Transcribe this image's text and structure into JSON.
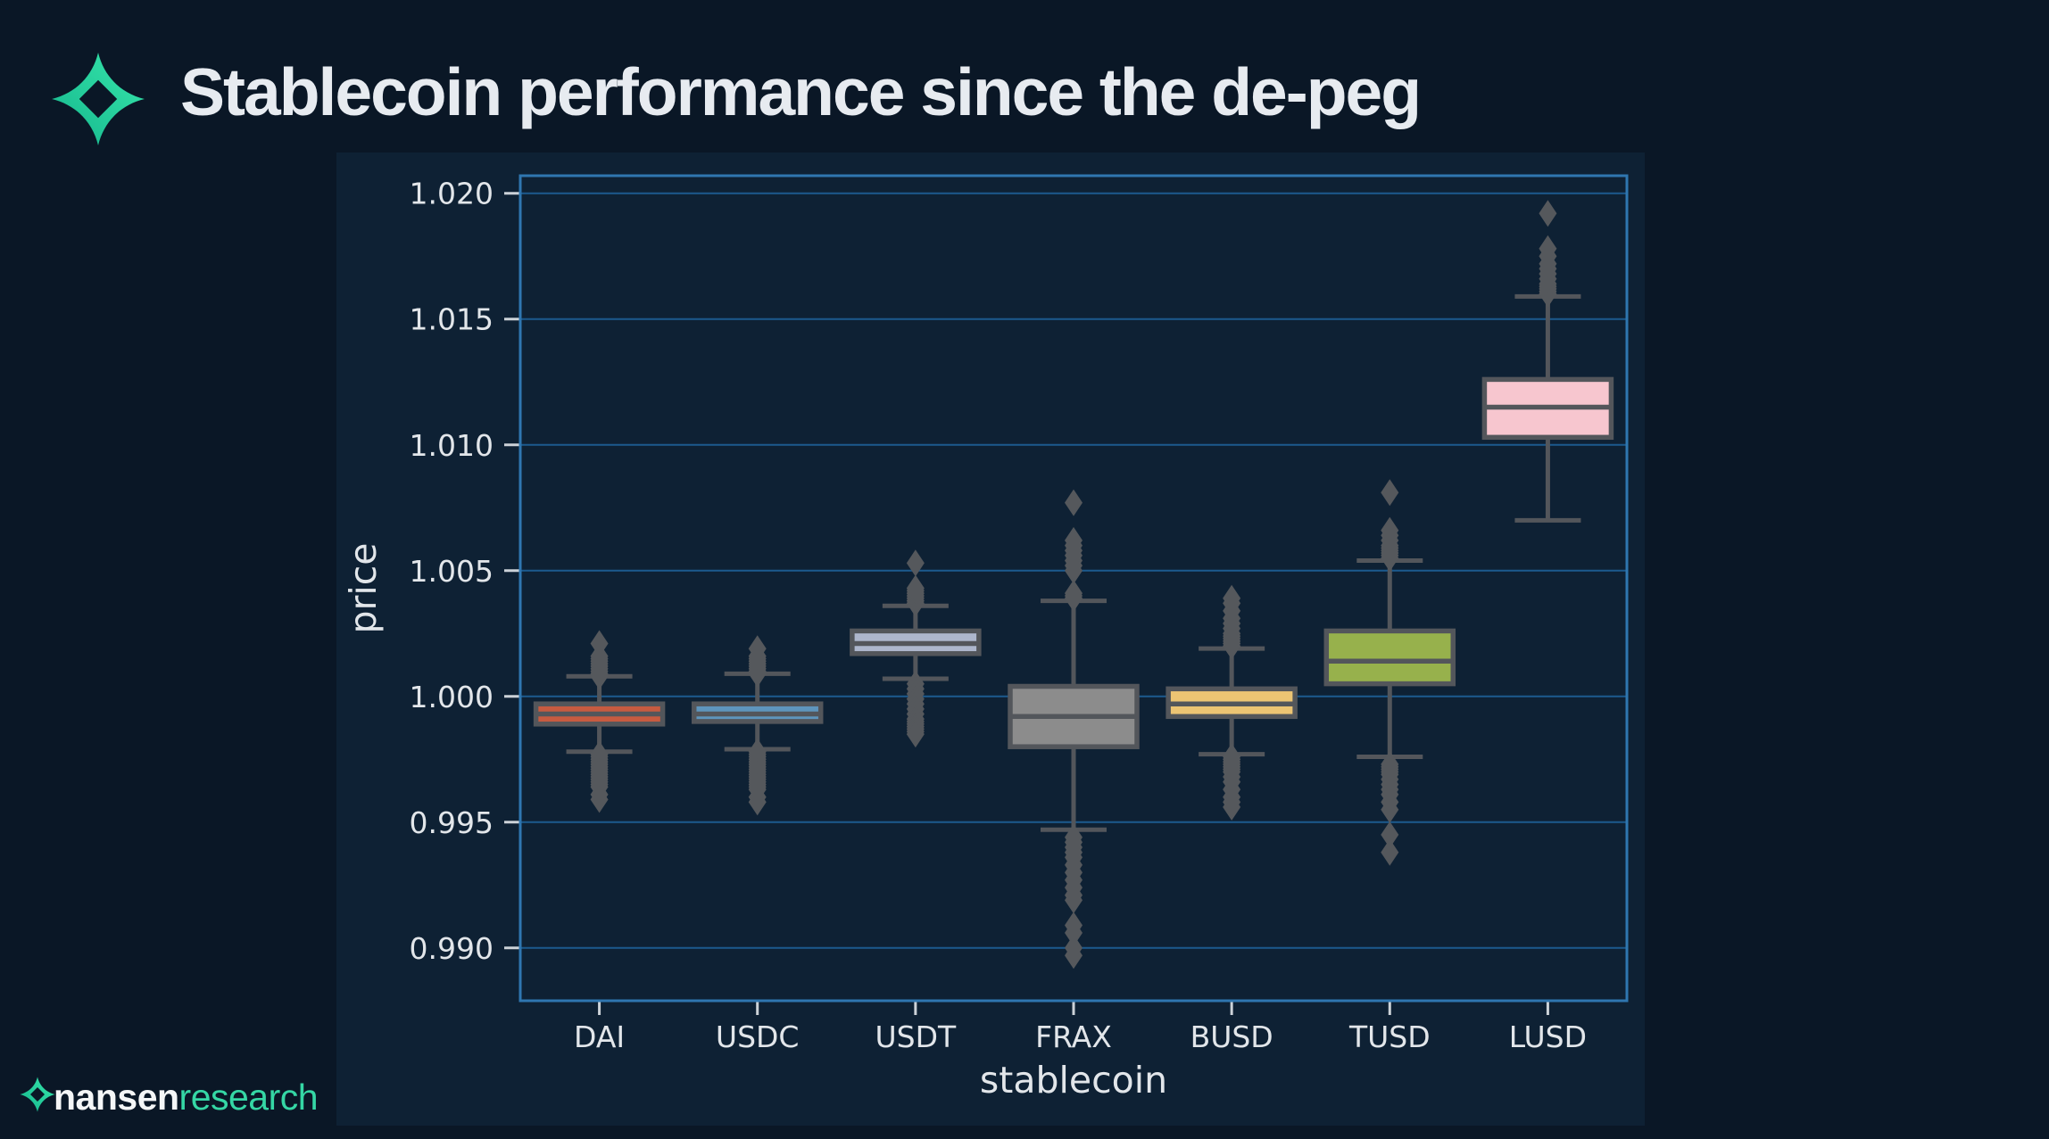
{
  "header": {
    "title": "Stablecoin performance since the de-peg",
    "logo_icon": "nansen-diamond-icon"
  },
  "footer": {
    "brand_bold": "nansen",
    "brand_light": "research",
    "logo_icon": "nansen-diamond-icon"
  },
  "colors": {
    "page_bg": "#0a1726",
    "figure_bg": "#0e2134",
    "spine": "#2f76b0",
    "grid": "#1c5a8e",
    "tick": "#ccd2d8",
    "text": "#e2e6ea",
    "box_line": "#53565b",
    "outlier": "#55585c",
    "title_text": "#e7ebf0",
    "brand_white": "#f4f6f7",
    "brand_teal": "#35d7a5",
    "logo_grad_start": "#38e8ac",
    "logo_grad_end": "#14b58c"
  },
  "chart_data": {
    "type": "boxplot",
    "title": "",
    "xlabel": "stablecoin",
    "ylabel": "price",
    "ylim": [
      0.9879,
      1.0207
    ],
    "grid": "horizontal",
    "legend": false,
    "yticks": [
      {
        "value": 1.02,
        "label": "1.020"
      },
      {
        "value": 1.015,
        "label": "1.015"
      },
      {
        "value": 1.01,
        "label": "1.010"
      },
      {
        "value": 1.005,
        "label": "1.005"
      },
      {
        "value": 1.0,
        "label": "1.000"
      },
      {
        "value": 0.995,
        "label": "0.995"
      },
      {
        "value": 0.99,
        "label": "0.990"
      }
    ],
    "categories": [
      "DAI",
      "USDC",
      "USDT",
      "FRAX",
      "BUSD",
      "TUSD",
      "LUSD"
    ],
    "series": [
      {
        "name": "DAI",
        "color": "#c75b40",
        "whisker_low": 0.9978,
        "q1": 0.9989,
        "median": 0.9993,
        "q3": 0.9997,
        "whisker_high": 1.0008,
        "outliers_high": [
          1.0008,
          1.0009,
          1.001,
          1.0011,
          1.0012,
          1.0013,
          1.0014,
          1.0015,
          1.0016,
          1.0021
        ],
        "outliers_low": [
          0.9977,
          0.9976,
          0.9975,
          0.9974,
          0.9973,
          0.9972,
          0.9971,
          0.997,
          0.9969,
          0.9968,
          0.9967,
          0.9966,
          0.9965,
          0.9964,
          0.9961,
          0.9959
        ]
      },
      {
        "name": "USDC",
        "color": "#5e95bd",
        "whisker_low": 0.9979,
        "q1": 0.999,
        "median": 0.9993,
        "q3": 0.9997,
        "whisker_high": 1.0009,
        "outliers_high": [
          1.0009,
          1.001,
          1.0011,
          1.0012,
          1.0013,
          1.0014,
          1.0015,
          1.0016,
          1.0019
        ],
        "outliers_low": [
          0.9978,
          0.9977,
          0.9976,
          0.9975,
          0.9974,
          0.9973,
          0.9972,
          0.9971,
          0.997,
          0.9969,
          0.9968,
          0.9967,
          0.9966,
          0.9965,
          0.9964,
          0.9963,
          0.996,
          0.9958
        ]
      },
      {
        "name": "USDT",
        "color": "#adb6cc",
        "whisker_low": 1.0007,
        "q1": 1.0017,
        "median": 1.0021,
        "q3": 1.0026,
        "whisker_high": 1.0036,
        "outliers_high": [
          1.0037,
          1.0038,
          1.0039,
          1.004,
          1.0041,
          1.0042,
          1.0043,
          1.0053
        ],
        "outliers_low": [
          1.0005,
          1.0003,
          1.0001,
          0.9999,
          0.9997,
          0.9995,
          0.9993,
          0.9991,
          0.999,
          0.9989,
          0.9988,
          0.9987,
          0.9986,
          0.9985
        ]
      },
      {
        "name": "FRAX",
        "color": "#8c8c8c",
        "whisker_low": 0.9947,
        "q1": 0.998,
        "median": 0.9992,
        "q3": 1.0004,
        "whisker_high": 1.0038,
        "outliers_high": [
          1.0039,
          1.004,
          1.0041,
          1.005,
          1.0052,
          1.0054,
          1.0056,
          1.0058,
          1.006,
          1.0062,
          1.0077
        ],
        "outliers_low": [
          0.9944,
          0.9942,
          0.994,
          0.9938,
          0.9936,
          0.9933,
          0.993,
          0.9927,
          0.9924,
          0.9921,
          0.9919,
          0.9909,
          0.9906,
          0.99,
          0.9897
        ]
      },
      {
        "name": "BUSD",
        "color": "#ecc473",
        "whisker_low": 0.9977,
        "q1": 0.9992,
        "median": 0.9997,
        "q3": 1.0003,
        "whisker_high": 1.0019,
        "outliers_high": [
          1.002,
          1.0021,
          1.0022,
          1.0023,
          1.0024,
          1.0025,
          1.0027,
          1.0029,
          1.0031,
          1.0034,
          1.0037,
          1.0039
        ],
        "outliers_low": [
          0.9976,
          0.9975,
          0.9974,
          0.9973,
          0.9972,
          0.9971,
          0.997,
          0.9968,
          0.9966,
          0.9963,
          0.996,
          0.9958,
          0.9956
        ]
      },
      {
        "name": "TUSD",
        "color": "#97b14c",
        "whisker_low": 0.9976,
        "q1": 1.0005,
        "median": 1.0014,
        "q3": 1.0026,
        "whisker_high": 1.0054,
        "outliers_high": [
          1.0055,
          1.0056,
          1.0057,
          1.0058,
          1.0059,
          1.006,
          1.0062,
          1.0064,
          1.0066,
          1.0081
        ],
        "outliers_low": [
          0.9973,
          0.9972,
          0.9971,
          0.997,
          0.9969,
          0.9967,
          0.9965,
          0.9963,
          0.9961,
          0.9958,
          0.9955,
          0.9945,
          0.9938
        ]
      },
      {
        "name": "LUSD",
        "color": "#f7c6cf",
        "whisker_low": 1.007,
        "q1": 1.0103,
        "median": 1.0115,
        "q3": 1.0126,
        "whisker_high": 1.0159,
        "outliers_high": [
          1.016,
          1.0161,
          1.0162,
          1.0163,
          1.0164,
          1.0166,
          1.0168,
          1.017,
          1.0172,
          1.0175,
          1.0178,
          1.0192
        ],
        "outliers_low": []
      }
    ]
  }
}
